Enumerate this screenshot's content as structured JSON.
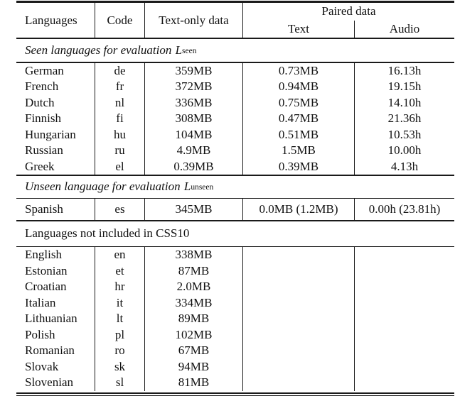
{
  "header": {
    "languages": "Languages",
    "code": "Code",
    "text_only": "Text-only data",
    "paired": "Paired data",
    "paired_text": "Text",
    "paired_audio": "Audio"
  },
  "sections": [
    {
      "style": "italic-math",
      "title": "Seen languages for evaluation ",
      "symbol": "L",
      "subscript": "seen",
      "rows": [
        {
          "language": "German",
          "code": "de",
          "text_only": "359MB",
          "paired_text": "0.73MB",
          "paired_audio": "16.13h"
        },
        {
          "language": "French",
          "code": "fr",
          "text_only": "372MB",
          "paired_text": "0.94MB",
          "paired_audio": "19.15h"
        },
        {
          "language": "Dutch",
          "code": "nl",
          "text_only": "336MB",
          "paired_text": "0.75MB",
          "paired_audio": "14.10h"
        },
        {
          "language": "Finnish",
          "code": "fi",
          "text_only": "308MB",
          "paired_text": "0.47MB",
          "paired_audio": "21.36h"
        },
        {
          "language": "Hungarian",
          "code": "hu",
          "text_only": "104MB",
          "paired_text": "0.51MB",
          "paired_audio": "10.53h"
        },
        {
          "language": "Russian",
          "code": "ru",
          "text_only": "4.9MB",
          "paired_text": "1.5MB",
          "paired_audio": "10.00h"
        },
        {
          "language": "Greek",
          "code": "el",
          "text_only": "0.39MB",
          "paired_text": "0.39MB",
          "paired_audio": "4.13h"
        }
      ]
    },
    {
      "style": "italic-math",
      "tall_rows": true,
      "title": "Unseen language for evaluation ",
      "symbol": "L",
      "subscript": "unseen",
      "rows": [
        {
          "language": "Spanish",
          "code": "es",
          "text_only": "345MB",
          "paired_text": "0.0MB (1.2MB)",
          "paired_audio": "0.00h (23.81h)"
        }
      ]
    },
    {
      "style": "plain",
      "title": "Languages not included in CSS10",
      "rows": [
        {
          "language": "English",
          "code": "en",
          "text_only": "338MB",
          "paired_text": "",
          "paired_audio": ""
        },
        {
          "language": "Estonian",
          "code": "et",
          "text_only": "87MB",
          "paired_text": "",
          "paired_audio": ""
        },
        {
          "language": "Croatian",
          "code": "hr",
          "text_only": "2.0MB",
          "paired_text": "",
          "paired_audio": ""
        },
        {
          "language": "Italian",
          "code": "it",
          "text_only": "334MB",
          "paired_text": "",
          "paired_audio": ""
        },
        {
          "language": "Lithuanian",
          "code": "lt",
          "text_only": "89MB",
          "paired_text": "",
          "paired_audio": ""
        },
        {
          "language": "Polish",
          "code": "pl",
          "text_only": "102MB",
          "paired_text": "",
          "paired_audio": ""
        },
        {
          "language": "Romanian",
          "code": "ro",
          "text_only": "67MB",
          "paired_text": "",
          "paired_audio": ""
        },
        {
          "language": "Slovak",
          "code": "sk",
          "text_only": "94MB",
          "paired_text": "",
          "paired_audio": ""
        },
        {
          "language": "Slovenian",
          "code": "sl",
          "text_only": "81MB",
          "paired_text": "",
          "paired_audio": ""
        }
      ]
    }
  ],
  "colors": {
    "background": "#ffffff",
    "text": "#111111",
    "rule": "#1a1a1a"
  }
}
